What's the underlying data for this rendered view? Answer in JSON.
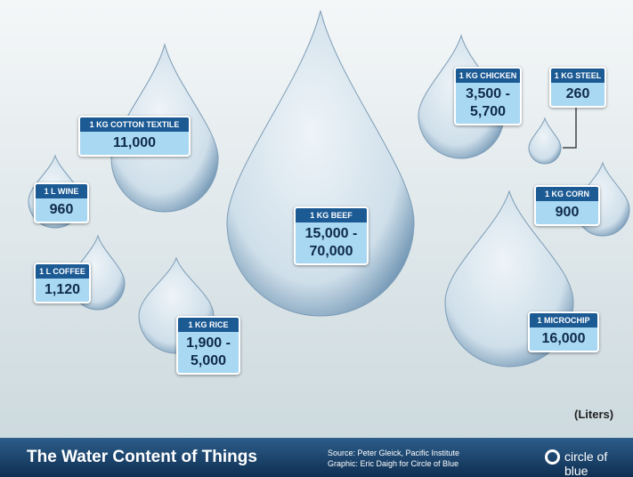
{
  "items": [
    {
      "label": "1 KG BEEF",
      "value": "15,000 - 70,000"
    },
    {
      "label": "1 KG COTTON TEXTILE",
      "value": "11,000"
    },
    {
      "label": "1 L WINE",
      "value": "960"
    },
    {
      "label": "1 L COFFEE",
      "value": "1,120"
    },
    {
      "label": "1 KG RICE",
      "value": "1,900 - 5,000"
    },
    {
      "label": "1 KG CHICKEN",
      "value": "3,500 - 5,700"
    },
    {
      "label": "1 KG STEEL",
      "value": "260"
    },
    {
      "label": "1 KG CORN",
      "value": "900"
    },
    {
      "label": "1 MICROCHIP",
      "value": "16,000"
    }
  ],
  "unit": "(Liters)",
  "footer": {
    "title": "The Water Content of Things",
    "source": "Source: Peter Gleick, Pacific Institute",
    "credit": "Graphic: Eric Daigh for Circle of Blue",
    "logo": "circle of blue"
  }
}
